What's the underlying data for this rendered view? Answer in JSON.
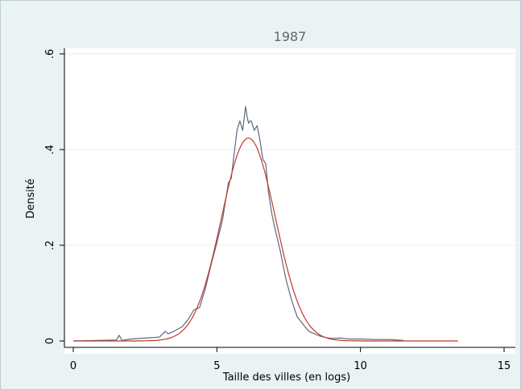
{
  "chart_data": {
    "type": "line",
    "title": "1987",
    "xlabel": "Taille des villes (en logs)",
    "ylabel": "Densité",
    "xlim": [
      0,
      15
    ],
    "ylim": [
      0,
      0.6
    ],
    "x_ticks": [
      0,
      5,
      10,
      15
    ],
    "x_tick_labels": [
      "0",
      "5",
      "10",
      "15"
    ],
    "y_ticks": [
      0,
      0.2,
      0.4,
      0.6
    ],
    "y_tick_labels": [
      "0",
      ".2",
      ".4",
      ".6"
    ],
    "grid": true,
    "series": [
      {
        "color": "#5a6a82",
        "style": "empirical-density",
        "x": [
          0,
          1.5,
          1.6,
          1.7,
          2.0,
          2.5,
          3.0,
          3.2,
          3.3,
          3.5,
          3.8,
          4.0,
          4.2,
          4.4,
          4.6,
          4.8,
          5.0,
          5.2,
          5.4,
          5.5,
          5.6,
          5.7,
          5.8,
          5.9,
          6.0,
          6.05,
          6.1,
          6.15,
          6.2,
          6.25,
          6.3,
          6.4,
          6.5,
          6.6,
          6.7,
          6.8,
          6.9,
          7.0,
          7.2,
          7.4,
          7.6,
          7.8,
          8.0,
          8.2,
          8.4,
          8.6,
          8.8,
          9.0,
          9.3,
          9.6,
          10.0,
          10.5,
          11.0,
          11.5
        ],
        "y": [
          0.0,
          0.002,
          0.012,
          0.001,
          0.004,
          0.006,
          0.008,
          0.02,
          0.015,
          0.02,
          0.03,
          0.045,
          0.065,
          0.07,
          0.11,
          0.16,
          0.205,
          0.255,
          0.33,
          0.34,
          0.39,
          0.44,
          0.46,
          0.44,
          0.49,
          0.47,
          0.455,
          0.46,
          0.46,
          0.45,
          0.44,
          0.45,
          0.42,
          0.38,
          0.37,
          0.31,
          0.27,
          0.24,
          0.19,
          0.13,
          0.085,
          0.05,
          0.035,
          0.02,
          0.015,
          0.01,
          0.007,
          0.005,
          0.006,
          0.004,
          0.004,
          0.003,
          0.003,
          0.001
        ]
      },
      {
        "color": "#c0392b",
        "style": "normal-density",
        "mean": 6.1,
        "sd": 0.94,
        "x_range": [
          0,
          13.4
        ],
        "peak": 0.424
      }
    ]
  }
}
